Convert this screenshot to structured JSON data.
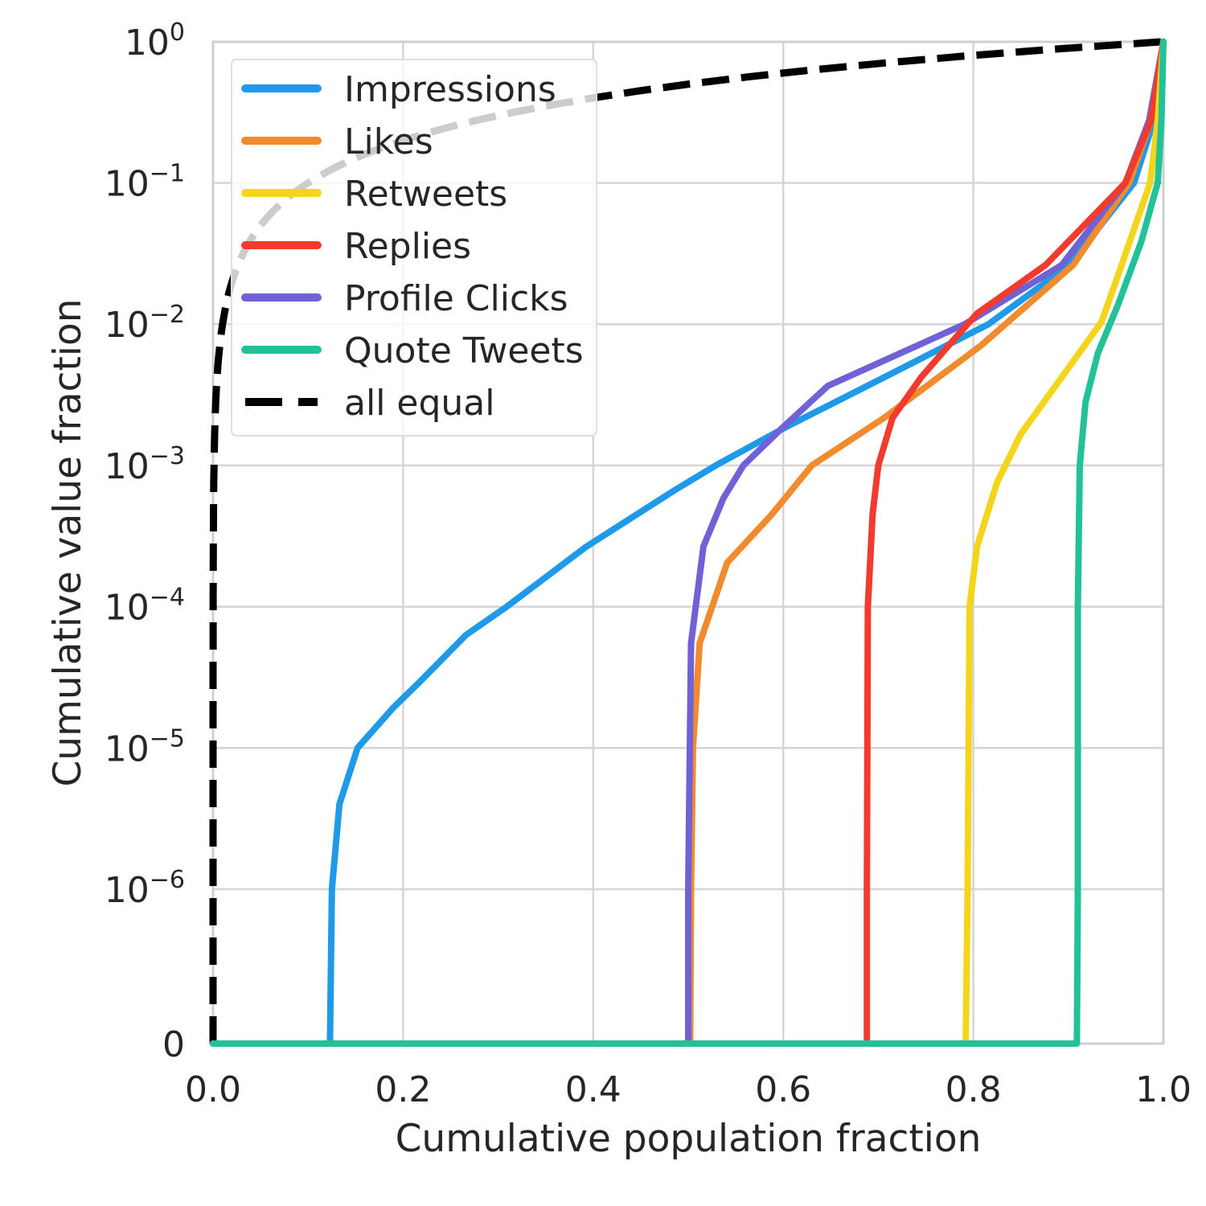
{
  "chart_data": {
    "type": "line",
    "title": "",
    "xlabel": "Cumulative population fraction",
    "ylabel": "Cumulative value fraction",
    "xlim": [
      0,
      1
    ],
    "ylim": [
      0,
      1
    ],
    "yscale": "symlog",
    "grid": true,
    "legend_placement": "upper-left",
    "x_ticks": [
      "0.0",
      "0.2",
      "0.4",
      "0.6",
      "0.8",
      "1.0"
    ],
    "x_tick_values": [
      0,
      0.2,
      0.4,
      0.6,
      0.8,
      1.0
    ],
    "y_ticks": [
      {
        "value": 1,
        "base": "10",
        "exp": "0"
      },
      {
        "value": 0.1,
        "base": "10",
        "exp": "−1"
      },
      {
        "value": 0.01,
        "base": "10",
        "exp": "−2"
      },
      {
        "value": 0.001,
        "base": "10",
        "exp": "−3"
      },
      {
        "value": 0.0001,
        "base": "10",
        "exp": "−4"
      },
      {
        "value": 1e-05,
        "base": "10",
        "exp": "−5"
      },
      {
        "value": 1e-06,
        "base": "10",
        "exp": "−6"
      },
      {
        "value": 0,
        "base": "0",
        "exp": ""
      }
    ],
    "series": [
      {
        "name": "Impressions",
        "color": "#1f9ae8",
        "dash": false,
        "points": [
          [
            0,
            0
          ],
          [
            0.123,
            0
          ],
          [
            0.125,
            1e-06
          ],
          [
            0.133,
            4e-06
          ],
          [
            0.152,
            1e-05
          ],
          [
            0.19,
            1.94e-05
          ],
          [
            0.216,
            2.87e-05
          ],
          [
            0.266,
            6.3e-05
          ],
          [
            0.309,
            0.0001
          ],
          [
            0.393,
            0.000267
          ],
          [
            0.486,
            0.00067
          ],
          [
            0.529,
            0.001
          ],
          [
            0.605,
            0.0019
          ],
          [
            0.706,
            0.0042
          ],
          [
            0.816,
            0.01
          ],
          [
            0.901,
            0.0262
          ],
          [
            0.969,
            0.1
          ],
          [
            0.99,
            0.277
          ],
          [
            1,
            1
          ]
        ]
      },
      {
        "name": "Likes",
        "color": "#f28a2e",
        "dash": false,
        "points": [
          [
            0,
            0
          ],
          [
            0.502,
            0
          ],
          [
            0.503,
            1e-06
          ],
          [
            0.505,
            1e-05
          ],
          [
            0.512,
            5.5e-05
          ],
          [
            0.541,
            0.000205
          ],
          [
            0.588,
            0.00045
          ],
          [
            0.63,
            0.001
          ],
          [
            0.706,
            0.00217
          ],
          [
            0.808,
            0.00706
          ],
          [
            0.905,
            0.0262
          ],
          [
            0.964,
            0.1
          ],
          [
            0.987,
            0.277
          ],
          [
            1,
            1
          ]
        ]
      },
      {
        "name": "Retweets",
        "color": "#f5d41c",
        "dash": false,
        "points": [
          [
            0,
            0
          ],
          [
            0.792,
            0
          ],
          [
            0.794,
            1e-06
          ],
          [
            0.796,
            0.0001
          ],
          [
            0.804,
            0.000267
          ],
          [
            0.825,
            0.00076
          ],
          [
            0.85,
            0.00167
          ],
          [
            0.893,
            0.0042
          ],
          [
            0.935,
            0.0104
          ],
          [
            0.956,
            0.0262
          ],
          [
            0.986,
            0.1
          ],
          [
            0.994,
            0.277
          ],
          [
            1,
            1
          ]
        ]
      },
      {
        "name": "Replies",
        "color": "#f23a2e",
        "dash": false,
        "points": [
          [
            0,
            0
          ],
          [
            0.688,
            0
          ],
          [
            0.688,
            1e-06
          ],
          [
            0.689,
            0.0001
          ],
          [
            0.694,
            0.00045
          ],
          [
            0.7,
            0.001
          ],
          [
            0.715,
            0.00217
          ],
          [
            0.745,
            0.0042
          ],
          [
            0.774,
            0.00706
          ],
          [
            0.804,
            0.0119
          ],
          [
            0.876,
            0.0262
          ],
          [
            0.96,
            0.1
          ],
          [
            0.987,
            0.277
          ],
          [
            1,
            1
          ]
        ]
      },
      {
        "name": "Profile Clicks",
        "color": "#6e62d6",
        "dash": false,
        "points": [
          [
            0,
            0
          ],
          [
            0.5,
            0
          ],
          [
            0.5,
            1e-06
          ],
          [
            0.503,
            5.5e-05
          ],
          [
            0.516,
            0.000267
          ],
          [
            0.537,
            0.000585
          ],
          [
            0.558,
            0.001
          ],
          [
            0.601,
            0.0019
          ],
          [
            0.647,
            0.00366
          ],
          [
            0.791,
            0.01
          ],
          [
            0.893,
            0.0262
          ],
          [
            0.96,
            0.1
          ],
          [
            0.985,
            0.277
          ],
          [
            1,
            1
          ]
        ]
      },
      {
        "name": "Quote Tweets",
        "color": "#22c198",
        "dash": false,
        "points": [
          [
            0,
            0
          ],
          [
            0.909,
            0
          ],
          [
            0.91,
            1e-06
          ],
          [
            0.91,
            0.0001
          ],
          [
            0.912,
            0.001
          ],
          [
            0.918,
            0.0028
          ],
          [
            0.931,
            0.0062
          ],
          [
            0.952,
            0.0136
          ],
          [
            0.977,
            0.0388
          ],
          [
            0.994,
            0.1
          ],
          [
            0.998,
            0.277
          ],
          [
            1,
            1
          ]
        ]
      },
      {
        "name": "all equal",
        "color": "#000000",
        "dash": true,
        "function": "y = x"
      }
    ]
  }
}
